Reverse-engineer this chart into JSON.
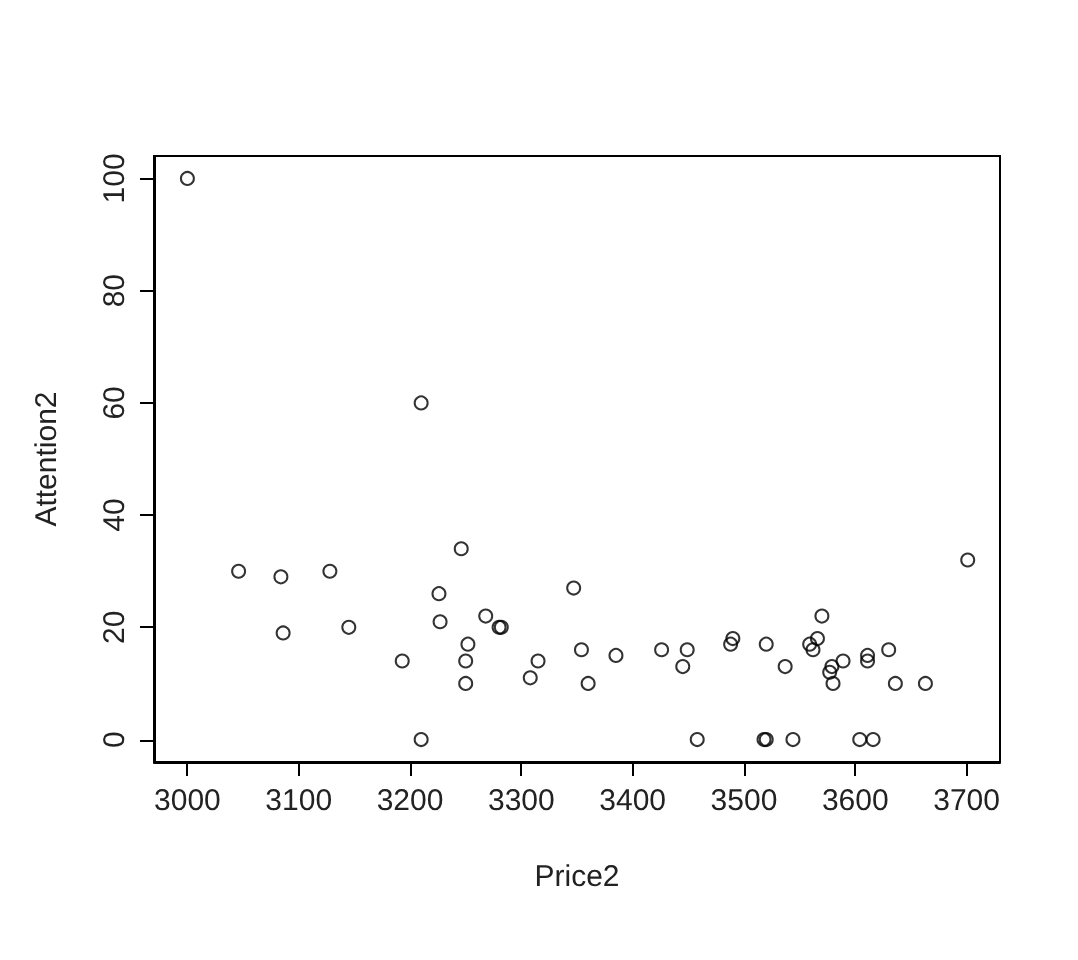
{
  "chart_data": {
    "type": "scatter",
    "xlabel": "Price2",
    "ylabel": "Attention2",
    "x": [
      3000,
      3046,
      3084,
      3086,
      3128,
      3145,
      3193,
      3210,
      3210,
      3226,
      3227,
      3246,
      3252,
      3250,
      3250,
      3268,
      3280,
      3282,
      3308,
      3315,
      3347,
      3354,
      3360,
      3385,
      3426,
      3449,
      3445,
      3458,
      3488,
      3490,
      3520,
      3518,
      3520,
      3544,
      3537,
      3570,
      3559,
      3566,
      3562,
      3579,
      3577,
      3580,
      3589,
      3611,
      3611,
      3630,
      3636,
      3663,
      3604,
      3616,
      3701
    ],
    "values": [
      100,
      30,
      29,
      19,
      30,
      20,
      14,
      60,
      0,
      26,
      21,
      34,
      17,
      14,
      10,
      22,
      20,
      20,
      11,
      14,
      27,
      16,
      10,
      15,
      16,
      16,
      13,
      0,
      17,
      18,
      17,
      0,
      0,
      0,
      13,
      22,
      17,
      18,
      16,
      13,
      12,
      10,
      14,
      15,
      14,
      16,
      10,
      10,
      0,
      0,
      32
    ],
    "color": "#000000",
    "marker": "circle",
    "xlim": [
      2970,
      3730
    ],
    "ylim": [
      -4,
      104
    ],
    "xticks": [
      3000,
      3100,
      3200,
      3300,
      3400,
      3500,
      3600,
      3700
    ],
    "yticks": [
      0,
      20,
      40,
      60,
      80,
      100
    ]
  }
}
